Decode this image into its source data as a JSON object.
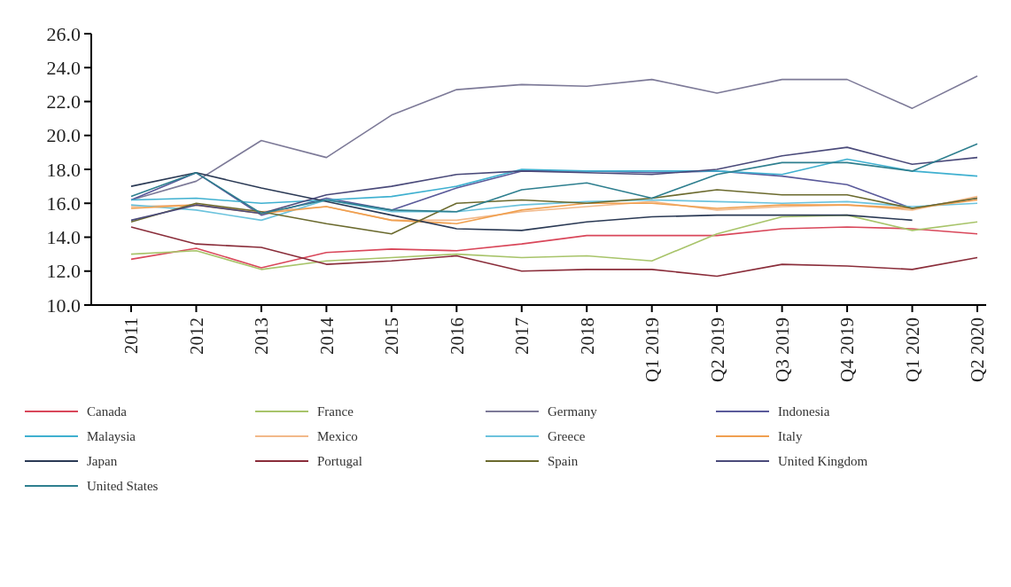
{
  "chart_data": {
    "type": "line",
    "categories": [
      "2011",
      "2012",
      "2013",
      "2014",
      "2015",
      "2016",
      "2017",
      "2018",
      "Q1 2019",
      "Q2 2019",
      "Q3 2019",
      "Q4 2019",
      "Q1 2020",
      "Q2 2020"
    ],
    "ylim": [
      10,
      26
    ],
    "yticks": [
      {
        "value": 10,
        "label": "10.0"
      },
      {
        "value": 12,
        "label": "12.0"
      },
      {
        "value": 14,
        "label": "14.0"
      },
      {
        "value": 16,
        "label": "16.0"
      },
      {
        "value": 18,
        "label": "18.0"
      },
      {
        "value": 20,
        "label": "20.0"
      },
      {
        "value": 22,
        "label": "22.0"
      },
      {
        "value": 24,
        "label": "24.0"
      },
      {
        "value": 26,
        "label": "26.0"
      }
    ],
    "grid": false,
    "legend": "bottom",
    "series": [
      {
        "name": "Canada",
        "color": "#d9475a",
        "values": [
          12.7,
          13.35,
          12.2,
          13.1,
          13.3,
          13.2,
          13.6,
          14.1,
          14.1,
          14.1,
          14.5,
          14.6,
          14.5,
          14.2
        ]
      },
      {
        "name": "France",
        "color": "#a8c46a",
        "values": [
          13.0,
          13.2,
          12.1,
          12.6,
          12.8,
          13.0,
          12.8,
          12.9,
          12.6,
          14.2,
          15.2,
          15.3,
          14.4,
          14.9
        ]
      },
      {
        "name": "Germany",
        "color": "#7d7a98",
        "values": [
          16.2,
          17.3,
          19.7,
          18.7,
          21.2,
          22.7,
          23.0,
          22.9,
          23.3,
          22.5,
          23.3,
          23.3,
          21.6,
          23.5
        ]
      },
      {
        "name": "Indonesia",
        "color": "#5a5a9a",
        "values": [
          16.2,
          17.8,
          15.3,
          16.3,
          15.6,
          16.9,
          17.9,
          17.9,
          17.8,
          17.9,
          17.6,
          17.1,
          15.7,
          16.3
        ]
      },
      {
        "name": "Malaysia",
        "color": "#3fb0d0",
        "values": [
          16.2,
          16.3,
          16.0,
          16.2,
          16.4,
          17.0,
          18.0,
          17.9,
          17.9,
          17.9,
          17.7,
          18.6,
          17.9,
          17.6
        ]
      },
      {
        "name": "Mexico",
        "color": "#f2b98a",
        "values": [
          15.8,
          15.9,
          15.5,
          15.8,
          15.0,
          15.0,
          15.5,
          15.8,
          16.1,
          15.6,
          15.8,
          15.9,
          15.6,
          16.4
        ]
      },
      {
        "name": "Greece",
        "color": "#6cc3dd",
        "values": [
          15.9,
          15.6,
          15.0,
          16.2,
          15.5,
          15.5,
          15.9,
          16.1,
          16.2,
          16.1,
          16.0,
          16.1,
          15.8,
          16.0
        ]
      },
      {
        "name": "Italy",
        "color": "#f0a050",
        "values": [
          15.7,
          15.9,
          15.4,
          15.8,
          15.0,
          14.8,
          15.6,
          16.0,
          16.0,
          15.7,
          15.9,
          15.9,
          15.7,
          16.2
        ]
      },
      {
        "name": "Japan",
        "color": "#2b3a55",
        "values": [
          17.0,
          17.8,
          16.9,
          16.1,
          15.3,
          14.5,
          14.4,
          14.9,
          15.2,
          15.3,
          15.3,
          15.3,
          15.0,
          null
        ]
      },
      {
        "name": "Portugal",
        "color": "#8a2d3a",
        "values": [
          14.6,
          13.6,
          13.4,
          12.4,
          12.6,
          12.9,
          12.0,
          12.1,
          12.1,
          11.7,
          12.4,
          12.3,
          12.1,
          12.8
        ]
      },
      {
        "name": "Spain",
        "color": "#6b6a2e",
        "values": [
          14.9,
          16.0,
          15.5,
          14.8,
          14.2,
          16.0,
          16.2,
          16.0,
          16.3,
          16.8,
          16.5,
          16.5,
          15.7,
          16.3
        ]
      },
      {
        "name": "United Kingdom",
        "color": "#4a4a7a",
        "values": [
          15.0,
          15.9,
          15.4,
          16.5,
          17.0,
          17.7,
          17.9,
          17.8,
          17.7,
          18.0,
          18.8,
          19.3,
          18.3,
          18.7
        ]
      },
      {
        "name": "United States",
        "color": "#2e7f8f",
        "values": [
          16.4,
          17.8,
          15.4,
          16.2,
          15.6,
          15.5,
          16.8,
          17.2,
          16.3,
          17.7,
          18.4,
          18.4,
          17.9,
          19.5
        ]
      }
    ]
  }
}
